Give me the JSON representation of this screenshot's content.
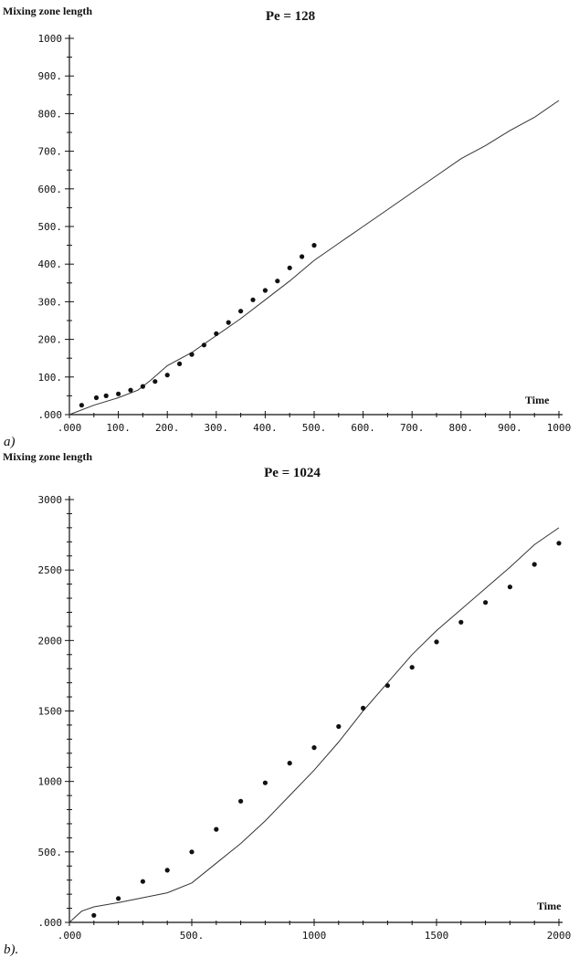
{
  "chart_data": [
    {
      "type": "scatter",
      "panel_label": "a)",
      "title": "Pe = 128",
      "xlabel": "Time",
      "ylabel": "Mixing zone length",
      "xlim": [
        0,
        1000
      ],
      "ylim": [
        0,
        1000
      ],
      "x_ticks": [
        {
          "v": 0,
          "label": ".000"
        },
        {
          "v": 100,
          "label": "100."
        },
        {
          "v": 200,
          "label": "200."
        },
        {
          "v": 300,
          "label": "300."
        },
        {
          "v": 400,
          "label": "400."
        },
        {
          "v": 500,
          "label": "500."
        },
        {
          "v": 600,
          "label": "600."
        },
        {
          "v": 700,
          "label": "700."
        },
        {
          "v": 800,
          "label": "800."
        },
        {
          "v": 900,
          "label": "900."
        },
        {
          "v": 1000,
          "label": "1000"
        }
      ],
      "y_ticks": [
        {
          "v": 0,
          "label": ".000"
        },
        {
          "v": 100,
          "label": "100."
        },
        {
          "v": 200,
          "label": "200."
        },
        {
          "v": 300,
          "label": "300."
        },
        {
          "v": 400,
          "label": "400."
        },
        {
          "v": 500,
          "label": "500."
        },
        {
          "v": 600,
          "label": "600."
        },
        {
          "v": 700,
          "label": "700."
        },
        {
          "v": 800,
          "label": "800."
        },
        {
          "v": 900,
          "label": "900."
        },
        {
          "v": 1000,
          "label": "1000"
        }
      ],
      "series": [
        {
          "kind": "line",
          "points": [
            [
              0,
              0
            ],
            [
              50,
              25
            ],
            [
              100,
              45
            ],
            [
              140,
              65
            ],
            [
              165,
              90
            ],
            [
              200,
              130
            ],
            [
              250,
              165
            ],
            [
              300,
              210
            ],
            [
              350,
              255
            ],
            [
              400,
              305
            ],
            [
              450,
              355
            ],
            [
              500,
              410
            ],
            [
              550,
              455
            ],
            [
              600,
              500
            ],
            [
              650,
              545
            ],
            [
              700,
              590
            ],
            [
              750,
              635
            ],
            [
              800,
              680
            ],
            [
              850,
              715
            ],
            [
              900,
              755
            ],
            [
              950,
              790
            ],
            [
              1000,
              835
            ]
          ]
        },
        {
          "kind": "points",
          "points": [
            [
              25,
              25
            ],
            [
              55,
              45
            ],
            [
              75,
              50
            ],
            [
              100,
              55
            ],
            [
              125,
              65
            ],
            [
              150,
              75
            ],
            [
              175,
              88
            ],
            [
              200,
              105
            ],
            [
              225,
              135
            ],
            [
              250,
              160
            ],
            [
              275,
              185
            ],
            [
              300,
              215
            ],
            [
              325,
              245
            ],
            [
              350,
              275
            ],
            [
              375,
              305
            ],
            [
              400,
              330
            ],
            [
              425,
              355
            ],
            [
              450,
              390
            ],
            [
              475,
              420
            ],
            [
              500,
              450
            ]
          ]
        }
      ]
    },
    {
      "type": "scatter",
      "panel_label": "b).",
      "title": "Pe = 1024",
      "xlabel": "Time",
      "ylabel": "Mixing zone length",
      "xlim": [
        0,
        2000
      ],
      "ylim": [
        0,
        3000
      ],
      "x_ticks": [
        {
          "v": 0,
          "label": ".000"
        },
        {
          "v": 500,
          "label": "500."
        },
        {
          "v": 1000,
          "label": "1000"
        },
        {
          "v": 1500,
          "label": "1500"
        },
        {
          "v": 2000,
          "label": "2000"
        }
      ],
      "y_ticks": [
        {
          "v": 0,
          "label": ".000"
        },
        {
          "v": 500,
          "label": "500."
        },
        {
          "v": 1000,
          "label": "1000"
        },
        {
          "v": 1500,
          "label": "1500"
        },
        {
          "v": 2000,
          "label": "2000"
        },
        {
          "v": 2500,
          "label": "2500"
        },
        {
          "v": 3000,
          "label": "3000"
        }
      ],
      "series": [
        {
          "kind": "line",
          "points": [
            [
              0,
              0
            ],
            [
              50,
              80
            ],
            [
              100,
              110
            ],
            [
              200,
              140
            ],
            [
              300,
              175
            ],
            [
              400,
              210
            ],
            [
              500,
              280
            ],
            [
              600,
              420
            ],
            [
              700,
              560
            ],
            [
              800,
              720
            ],
            [
              900,
              900
            ],
            [
              1000,
              1080
            ],
            [
              1100,
              1280
            ],
            [
              1200,
              1500
            ],
            [
              1300,
              1700
            ],
            [
              1400,
              1900
            ],
            [
              1500,
              2070
            ],
            [
              1600,
              2220
            ],
            [
              1700,
              2370
            ],
            [
              1800,
              2520
            ],
            [
              1900,
              2680
            ],
            [
              2000,
              2800
            ]
          ]
        },
        {
          "kind": "points",
          "points": [
            [
              100,
              50
            ],
            [
              200,
              170
            ],
            [
              300,
              290
            ],
            [
              400,
              370
            ],
            [
              500,
              500
            ],
            [
              600,
              660
            ],
            [
              700,
              860
            ],
            [
              800,
              990
            ],
            [
              900,
              1130
            ],
            [
              1000,
              1240
            ],
            [
              1100,
              1390
            ],
            [
              1200,
              1520
            ],
            [
              1300,
              1680
            ],
            [
              1400,
              1810
            ],
            [
              1500,
              1990
            ],
            [
              1600,
              2130
            ],
            [
              1700,
              2270
            ],
            [
              1800,
              2380
            ],
            [
              1900,
              2540
            ],
            [
              2000,
              2690
            ]
          ]
        }
      ]
    }
  ]
}
